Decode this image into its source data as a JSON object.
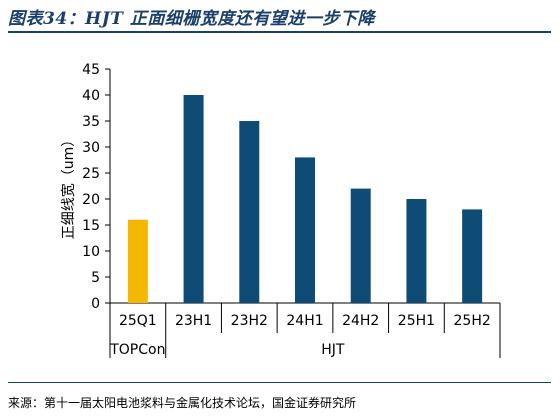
{
  "figure": {
    "title": "图表34：HJT 正面细栅宽度还有望进一步下降",
    "source": "来源：第十一届太阳电池浆料与金属化技术论坛，国金证券研究所"
  },
  "chart_data": {
    "type": "bar",
    "categories": [
      "25Q1",
      "23H1",
      "23H2",
      "24H1",
      "24H2",
      "25H1",
      "25H2"
    ],
    "groups": [
      {
        "label": "TOPCon",
        "categories": [
          "25Q1"
        ]
      },
      {
        "label": "HJT",
        "categories": [
          "23H1",
          "23H2",
          "24H1",
          "24H2",
          "25H1",
          "25H2"
        ]
      }
    ],
    "values": [
      16,
      40,
      35,
      28,
      22,
      20,
      18
    ],
    "bar_colors": [
      "#f5b800",
      "#0f4c75",
      "#0f4c75",
      "#0f4c75",
      "#0f4c75",
      "#0f4c75",
      "#0f4c75"
    ],
    "ylabel": "正细线宽（um）",
    "ylim": [
      0,
      45
    ],
    "yticks": [
      0,
      5,
      10,
      15,
      20,
      25,
      30,
      35,
      40,
      45
    ],
    "grid": false,
    "legend": "none"
  }
}
